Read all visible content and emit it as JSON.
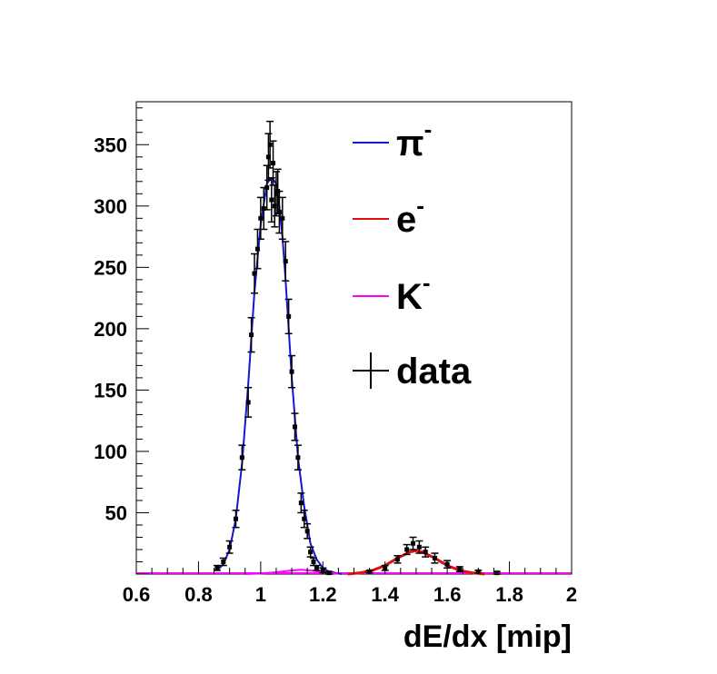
{
  "chart_data": {
    "type": "histogram",
    "title": "",
    "xlabel": "dE/dx [mip]",
    "ylabel": "",
    "xlim": [
      0.6,
      2.0
    ],
    "ylim": [
      0,
      385
    ],
    "x_ticks": [
      "0.6",
      "0.8",
      "1",
      "1.2",
      "1.4",
      "1.6",
      "1.8",
      "2"
    ],
    "y_ticks": [
      "50",
      "100",
      "150",
      "200",
      "250",
      "300",
      "350"
    ],
    "grid": false,
    "legend_position": "top-right",
    "colors": {
      "pion": "#1515d6",
      "electron": "#e01010",
      "kaon": "#ff00ff",
      "data": "#000000"
    },
    "series": [
      {
        "name": "π",
        "superscript": "-",
        "kind": "fit-line",
        "color": "#1515d6",
        "x": [
          0.86,
          0.88,
          0.9,
          0.92,
          0.94,
          0.96,
          0.98,
          1.0,
          1.02,
          1.03,
          1.04,
          1.05,
          1.06,
          1.07,
          1.08,
          1.1,
          1.12,
          1.14,
          1.16,
          1.18,
          1.2,
          1.22,
          1.24,
          1.26
        ],
        "y": [
          3,
          8,
          20,
          45,
          90,
          155,
          230,
          285,
          318,
          322,
          322,
          318,
          300,
          275,
          240,
          160,
          95,
          55,
          25,
          12,
          5,
          2,
          1,
          0
        ]
      },
      {
        "name": "e",
        "superscript": "-",
        "kind": "fit-line",
        "color": "#e01010",
        "x": [
          1.28,
          1.32,
          1.36,
          1.4,
          1.44,
          1.48,
          1.5,
          1.52,
          1.56,
          1.6,
          1.64,
          1.68,
          1.72
        ],
        "y": [
          0,
          1,
          3,
          7,
          13,
          18,
          19,
          18,
          13,
          7,
          3,
          1,
          0
        ]
      },
      {
        "name": "K",
        "superscript": "-",
        "kind": "fit-line",
        "color": "#ff00ff",
        "x": [
          0.95,
          1.0,
          1.05,
          1.1,
          1.13,
          1.16,
          1.2,
          1.25
        ],
        "y": [
          0,
          0.5,
          1.5,
          3,
          3.5,
          3,
          1.5,
          0.3
        ]
      },
      {
        "name": "data",
        "kind": "points",
        "color": "#000000",
        "x": [
          0.86,
          0.88,
          0.9,
          0.92,
          0.94,
          0.96,
          0.97,
          0.98,
          0.99,
          1.0,
          1.01,
          1.02,
          1.025,
          1.03,
          1.035,
          1.04,
          1.045,
          1.05,
          1.055,
          1.06,
          1.07,
          1.08,
          1.09,
          1.1,
          1.11,
          1.12,
          1.13,
          1.14,
          1.15,
          1.16,
          1.17,
          1.18,
          1.2,
          1.22,
          1.35,
          1.4,
          1.44,
          1.47,
          1.49,
          1.51,
          1.53,
          1.56,
          1.6,
          1.64,
          1.7,
          1.76
        ],
        "y": [
          5,
          10,
          22,
          45,
          95,
          140,
          195,
          245,
          265,
          290,
          298,
          315,
          340,
          350,
          305,
          335,
          300,
          310,
          312,
          295,
          290,
          255,
          210,
          165,
          120,
          95,
          58,
          45,
          35,
          18,
          10,
          5,
          3,
          1,
          2,
          5,
          12,
          20,
          25,
          22,
          18,
          13,
          8,
          4,
          2,
          1
        ],
        "err": [
          2,
          3,
          5,
          7,
          10,
          12,
          14,
          16,
          16,
          17,
          17,
          18,
          19,
          19,
          18,
          18,
          17,
          18,
          18,
          17,
          17,
          16,
          14,
          13,
          11,
          10,
          8,
          7,
          6,
          4,
          3,
          2,
          2,
          1,
          1,
          2,
          3,
          4,
          5,
          5,
          4,
          4,
          3,
          2,
          1,
          1
        ]
      }
    ]
  }
}
